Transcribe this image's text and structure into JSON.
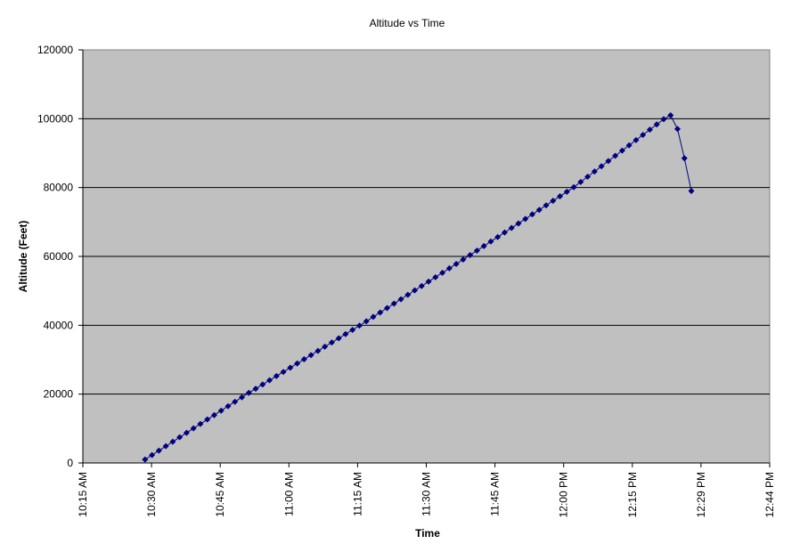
{
  "chart_data": {
    "type": "line",
    "title": "Altitude vs Time",
    "xlabel": "Time",
    "ylabel": "Altitude (Feet)",
    "ylim": [
      0,
      120000
    ],
    "yticks": [
      0,
      20000,
      40000,
      60000,
      80000,
      100000,
      120000
    ],
    "xlim": [
      "10:15",
      "12:44"
    ],
    "xtick_labels": [
      "10:15 AM",
      "10:30 AM",
      "10:45 AM",
      "11:00 AM",
      "11:15 AM",
      "11:30 AM",
      "11:45 AM",
      "12:00 PM",
      "12:15 PM",
      "12:29 PM",
      "12:44 PM"
    ],
    "grid": "horizontal",
    "legend": "none",
    "colors": {
      "series": "#000080",
      "plot_background": "#C0C0C0",
      "gridline": "#000000"
    },
    "series": [
      {
        "marker": "diamond",
        "x": [
          "10:28:30",
          "10:30:00",
          "10:31:30",
          "10:33:00",
          "10:34:30",
          "10:36:00",
          "10:37:30",
          "10:39:00",
          "10:40:30",
          "10:42:00",
          "10:43:30",
          "10:45:00",
          "10:46:30",
          "10:48:00",
          "10:49:30",
          "10:51:00",
          "10:52:30",
          "10:54:00",
          "10:55:30",
          "10:57:00",
          "10:58:30",
          "11:00:00",
          "11:01:30",
          "11:03:00",
          "11:04:30",
          "11:06:00",
          "11:07:30",
          "11:09:00",
          "11:10:30",
          "11:12:00",
          "11:13:30",
          "11:15:00",
          "11:16:30",
          "11:18:00",
          "11:19:30",
          "11:21:00",
          "11:22:30",
          "11:24:00",
          "11:25:30",
          "11:27:00",
          "11:28:30",
          "11:30:00",
          "11:31:30",
          "11:33:00",
          "11:34:30",
          "11:36:00",
          "11:37:30",
          "11:39:00",
          "11:40:30",
          "11:42:00",
          "11:43:30",
          "11:45:00",
          "11:46:30",
          "11:48:00",
          "11:49:30",
          "11:51:00",
          "11:52:30",
          "11:54:00",
          "11:55:30",
          "11:57:00",
          "11:58:30",
          "12:00:00",
          "12:01:30",
          "12:03:00",
          "12:04:30",
          "12:06:00",
          "12:07:30",
          "12:09:00",
          "12:10:30",
          "12:12:00",
          "12:13:30",
          "12:15:00",
          "12:16:30",
          "12:18:00",
          "12:19:30",
          "12:21:00",
          "12:22:30",
          "12:24:00",
          "12:25:30",
          "12:27:00"
        ],
        "y": [
          1000,
          2292,
          3583,
          4875,
          6167,
          7458,
          8750,
          10042,
          11333,
          12625,
          13917,
          15208,
          16500,
          17792,
          19083,
          20354,
          21575,
          22795,
          24016,
          25236,
          26457,
          27677,
          28898,
          30118,
          31339,
          32559,
          33780,
          35000,
          36221,
          37441,
          38662,
          39882,
          41157,
          42438,
          43719,
          45000,
          46281,
          47562,
          48843,
          50124,
          51405,
          52686,
          53967,
          55248,
          56529,
          57810,
          59091,
          60381,
          61695,
          63009,
          64323,
          65637,
          66951,
          68265,
          69579,
          70893,
          72207,
          73521,
          74835,
          76149,
          77463,
          78777,
          80098,
          81618,
          83138,
          84658,
          86178,
          87698,
          89218,
          90738,
          92258,
          93778,
          95298,
          96818,
          98338,
          99858,
          101000,
          97000,
          88500,
          79000
        ]
      }
    ]
  }
}
